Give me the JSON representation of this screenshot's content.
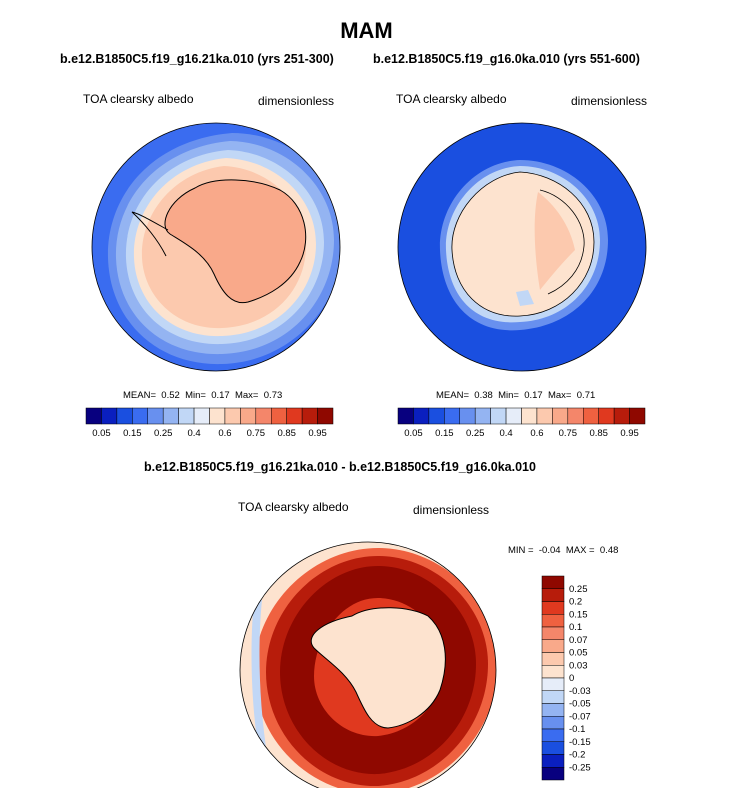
{
  "header": {
    "title": "MAM",
    "case_left": "b.e12.B1850C5.f19_g16.21ka.010 (yrs 251-300)",
    "case_right": "b.e12.B1850C5.f19_g16.0ka.010 (yrs 551-600)",
    "diff_title": "b.e12.B1850C5.f19_g16.21ka.010 - b.e12.B1850C5.f19_g16.0ka.010"
  },
  "panels": [
    {
      "variable": "TOA clearsky albedo",
      "units": "dimensionless",
      "mean_label": "MEAN=",
      "mean": "0.52",
      "min_label": "Min=",
      "min": "0.17",
      "max_label": "Max=",
      "max": "0.73"
    },
    {
      "variable": "TOA clearsky albedo",
      "units": "dimensionless",
      "mean_label": "MEAN=",
      "mean": "0.38",
      "min_label": "Min=",
      "min": "0.17",
      "max_label": "Max=",
      "max": "0.71"
    },
    {
      "variable": "TOA clearsky albedo",
      "units": "dimensionless",
      "min_label": "MIN =",
      "min": "-0.04",
      "max_label": "MAX =",
      "max": "0.48"
    }
  ],
  "colors": {
    "abs_levels": [
      "#08007f",
      "#0a1fbf",
      "#1a4fe0",
      "#3a6cf0",
      "#6890ef",
      "#94b4f2",
      "#c1d7f6",
      "#e6edf9",
      "#fde3cf",
      "#fcc9ae",
      "#f9a98a",
      "#f4866a",
      "#ef6140",
      "#e0391f",
      "#b71c0b",
      "#8f0800"
    ],
    "diff_levels": [
      "#08007f",
      "#0a1fbf",
      "#1a4fe0",
      "#3a6cf0",
      "#6890ef",
      "#94b4f2",
      "#c1d7f6",
      "#e6edf9",
      "#fde3cf",
      "#fcc9ae",
      "#f9a98a",
      "#f4866a",
      "#ef6140",
      "#e0391f",
      "#b71c0b",
      "#8f0800"
    ]
  },
  "chart_data": [
    {
      "type": "heatmap",
      "projection": "south polar stereographic",
      "title": "TOA clearsky albedo",
      "units": "dimensionless",
      "case": "b.e12.B1850C5.f19_g16.21ka.010 (yrs 251-300)",
      "mean": 0.52,
      "min": 0.17,
      "max": 0.73,
      "colorbar_ticks": [
        "0.05",
        "0.15",
        "0.25",
        "0.4",
        "0.6",
        "0.75",
        "0.85",
        "0.95"
      ]
    },
    {
      "type": "heatmap",
      "projection": "south polar stereographic",
      "title": "TOA clearsky albedo",
      "units": "dimensionless",
      "case": "b.e12.B1850C5.f19_g16.0ka.010 (yrs 551-600)",
      "mean": 0.38,
      "min": 0.17,
      "max": 0.71,
      "colorbar_ticks": [
        "0.05",
        "0.15",
        "0.25",
        "0.4",
        "0.6",
        "0.75",
        "0.85",
        "0.95"
      ]
    },
    {
      "type": "heatmap",
      "projection": "south polar stereographic",
      "title": "TOA clearsky albedo",
      "units": "dimensionless",
      "case": "b.e12.B1850C5.f19_g16.21ka.010 - b.e12.B1850C5.f19_g16.0ka.010",
      "min": -0.04,
      "max": 0.48,
      "colorbar_ticks": [
        "0.25",
        "0.2",
        "0.15",
        "0.1",
        "0.07",
        "0.05",
        "0.03",
        "0",
        "-0.03",
        "-0.05",
        "-0.07",
        "-0.1",
        "-0.15",
        "-0.2",
        "-0.25"
      ]
    }
  ]
}
